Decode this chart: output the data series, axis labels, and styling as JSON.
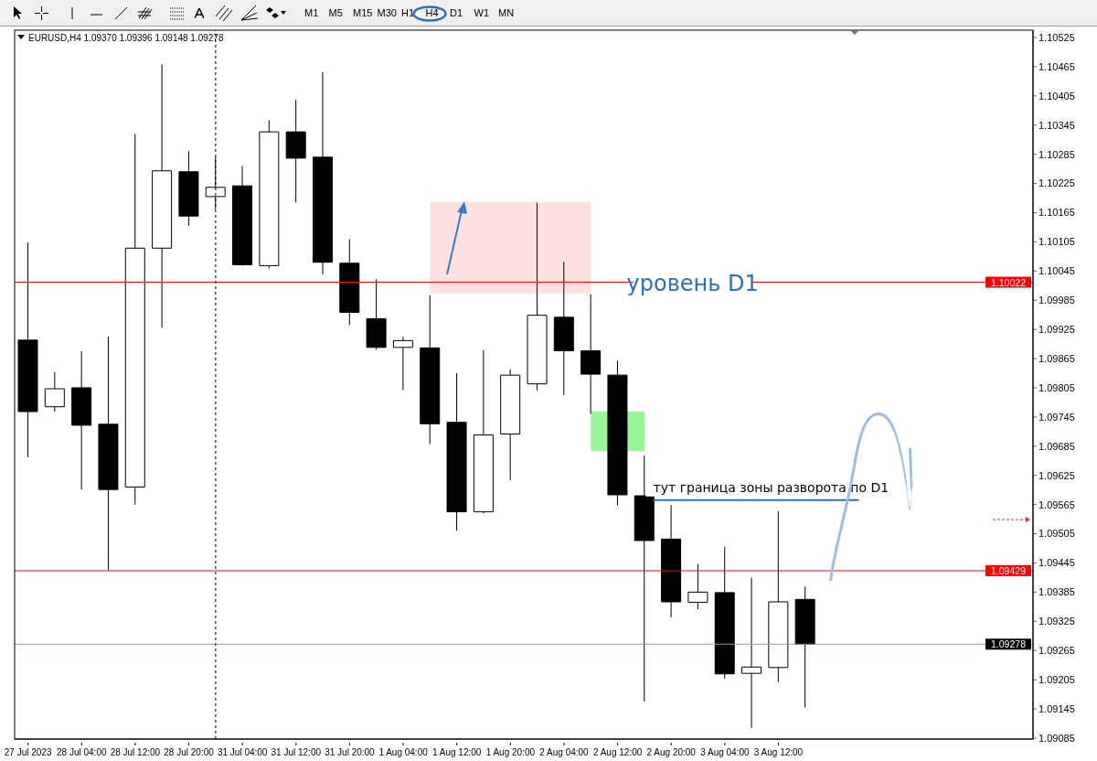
{
  "chart_data": {
    "type": "candlestick",
    "title": "EURUSD,H4  1.09370 1.09396 1.09148 1.09278",
    "categories": [
      "27 Jul 2023",
      null,
      "28 Jul 04:00",
      null,
      "28 Jul 12:00",
      null,
      "28 Jul 20:00",
      null,
      "31 Jul 04:00",
      null,
      "31 Jul 12:00",
      null,
      "31 Jul 20:00",
      null,
      "1 Aug 04:00",
      null,
      "1 Aug 12:00",
      null,
      "1 Aug 20:00",
      null,
      "2 Aug 04:00",
      null,
      "2 Aug 12:00",
      null,
      "2 Aug 20:00",
      null,
      "3 Aug 04:00",
      null,
      "3 Aug 12:00",
      null,
      null,
      null,
      null,
      null,
      null,
      null,
      null,
      null
    ],
    "ohlc": [
      [
        1.09903,
        1.10104,
        1.09662,
        1.09756
      ],
      [
        1.09766,
        1.09837,
        1.09756,
        1.09803
      ],
      [
        1.09805,
        1.0988,
        1.09596,
        1.09728
      ],
      [
        1.0973,
        1.0991,
        1.0943,
        1.09596
      ],
      [
        1.09601,
        1.10327,
        1.09565,
        1.10092
      ],
      [
        1.10092,
        1.1047,
        1.09928,
        1.10251
      ],
      [
        1.10249,
        1.10292,
        1.10138,
        1.10158
      ],
      [
        1.10198,
        1.1028,
        1.10172,
        1.10217
      ],
      [
        1.1022,
        1.10261,
        1.10056,
        1.10058
      ],
      [
        1.10056,
        1.10355,
        1.1005,
        1.10331
      ],
      [
        1.10331,
        1.10397,
        1.10186,
        1.10277
      ],
      [
        1.10279,
        1.10454,
        1.10038,
        1.10063
      ],
      [
        1.10061,
        1.1011,
        1.09934,
        1.0996
      ],
      [
        1.09947,
        1.10028,
        1.09883,
        1.09888
      ],
      [
        1.09888,
        1.0991,
        1.098,
        1.09902
      ],
      [
        1.09887,
        1.09995,
        1.09689,
        1.09731
      ],
      [
        1.09734,
        1.09835,
        1.09511,
        1.0955
      ],
      [
        1.0955,
        1.09882,
        1.09547,
        1.09708
      ],
      [
        1.0971,
        1.09843,
        1.09615,
        1.09831
      ],
      [
        1.09813,
        1.10185,
        1.098,
        1.09954
      ],
      [
        1.0995,
        1.10064,
        1.0979,
        1.09881
      ],
      [
        1.09881,
        1.09997,
        1.09751,
        1.09833
      ],
      [
        1.09831,
        1.09861,
        1.09563,
        1.09585
      ],
      [
        1.09583,
        1.09666,
        1.0916,
        1.09491
      ],
      [
        1.09494,
        1.09564,
        1.09333,
        1.09365
      ],
      [
        1.09364,
        1.09443,
        1.0935,
        1.09385
      ],
      [
        1.09384,
        1.09478,
        1.09207,
        1.09217
      ],
      [
        1.09218,
        1.09415,
        1.09106,
        1.09231
      ],
      [
        1.0923,
        1.09551,
        1.092,
        1.09365
      ],
      [
        1.0937,
        1.09396,
        1.09148,
        1.09278
      ],
      null,
      null,
      null,
      null,
      null,
      null,
      null,
      null
    ],
    "ylim": [
      1.09083,
      1.1054
    ],
    "yticks": [
      1.10525,
      1.10465,
      1.10405,
      1.10345,
      1.10285,
      1.10225,
      1.10165,
      1.10105,
      1.10045,
      1.09985,
      1.09925,
      1.09865,
      1.09805,
      1.09745,
      1.09685,
      1.09625,
      1.09565,
      1.09505,
      1.09445,
      1.09385,
      1.09325,
      1.09265,
      1.09205,
      1.09145,
      1.09085
    ],
    "ref_lines": [
      {
        "axis": "y",
        "value": 1.10022,
        "label": "1.10022",
        "color": "#ff0000"
      },
      {
        "axis": "y",
        "value": 1.09429,
        "label": "1.09429",
        "color": "#ff0000"
      },
      {
        "axis": "y",
        "value": 1.09278,
        "label": "1.09278",
        "color": "#8a9bb0"
      },
      {
        "axis": "y",
        "value": 1.09574,
        "label": "тут граница зоны разворота по D1",
        "color": "#2e6fb7"
      }
    ],
    "bands": [
      {
        "axis": "y",
        "from": 1.09999,
        "to": 1.10187,
        "color": "#ffe0e0"
      },
      {
        "axis": "y",
        "from": 1.09675,
        "to": 1.09756,
        "color": "#98f598"
      }
    ],
    "annotations": [
      {
        "text": "уровень D1",
        "y": 1.10022
      },
      "M1",
      "M5",
      "M15",
      "M30",
      "H1",
      "H4",
      "D1",
      "W1",
      "MN"
    ]
  }
}
